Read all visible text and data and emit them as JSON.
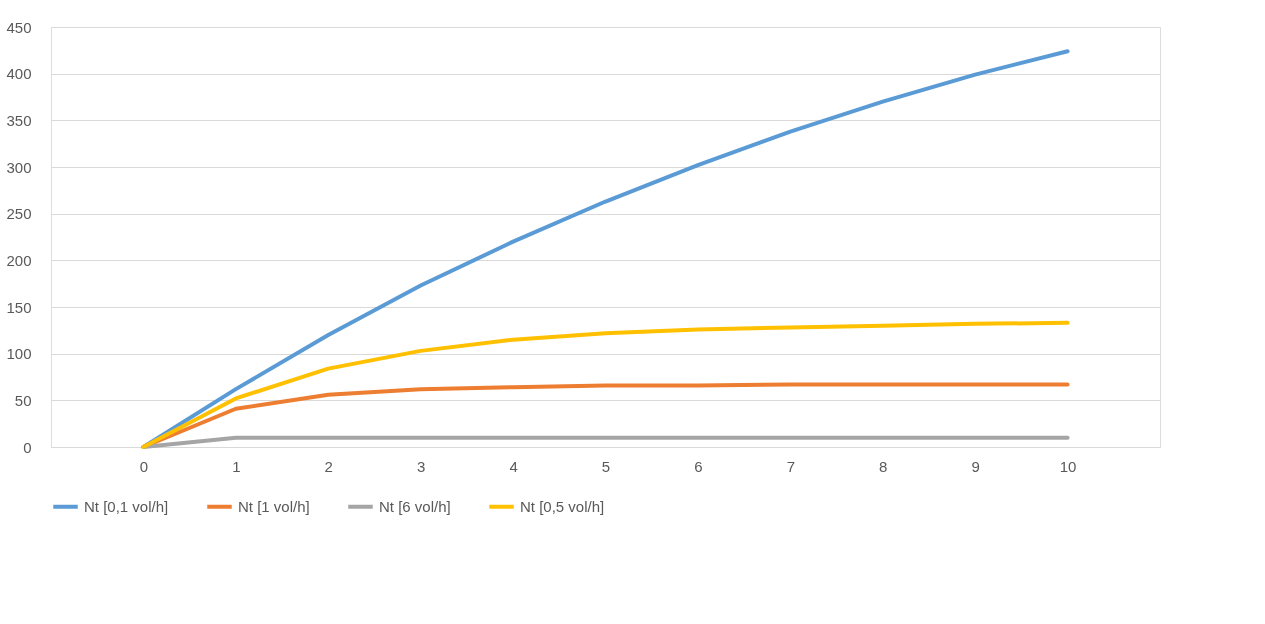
{
  "chart_data": {
    "type": "line",
    "categories": [
      "0",
      "1",
      "2",
      "3",
      "4",
      "5",
      "6",
      "7",
      "8",
      "9",
      "10"
    ],
    "series": [
      {
        "name": "Nt [0,1 vol/h]",
        "color": "#5b9bd5",
        "values": [
          0,
          62,
          120,
          173,
          220,
          263,
          302,
          338,
          370,
          399,
          424
        ]
      },
      {
        "name": "Nt [1 vol/h]",
        "color": "#ed7d31",
        "values": [
          0,
          41,
          56,
          62,
          64,
          66,
          66,
          67,
          67,
          67,
          67
        ]
      },
      {
        "name": "Nt [6 vol/h]",
        "color": "#a5a5a5",
        "values": [
          0,
          10,
          10,
          10,
          10,
          10,
          10,
          10,
          10,
          10,
          10
        ]
      },
      {
        "name": "Nt [0,5 vol/h]",
        "color": "#ffc000",
        "values": [
          0,
          52,
          84,
          103,
          115,
          122,
          126,
          128,
          130,
          132,
          133
        ]
      }
    ],
    "ylim": [
      0,
      450
    ],
    "yticks": [
      0,
      50,
      100,
      150,
      200,
      250,
      300,
      350,
      400,
      450
    ],
    "grid": "y",
    "legend": "bottom",
    "marker": "none",
    "line_style": "solid"
  }
}
